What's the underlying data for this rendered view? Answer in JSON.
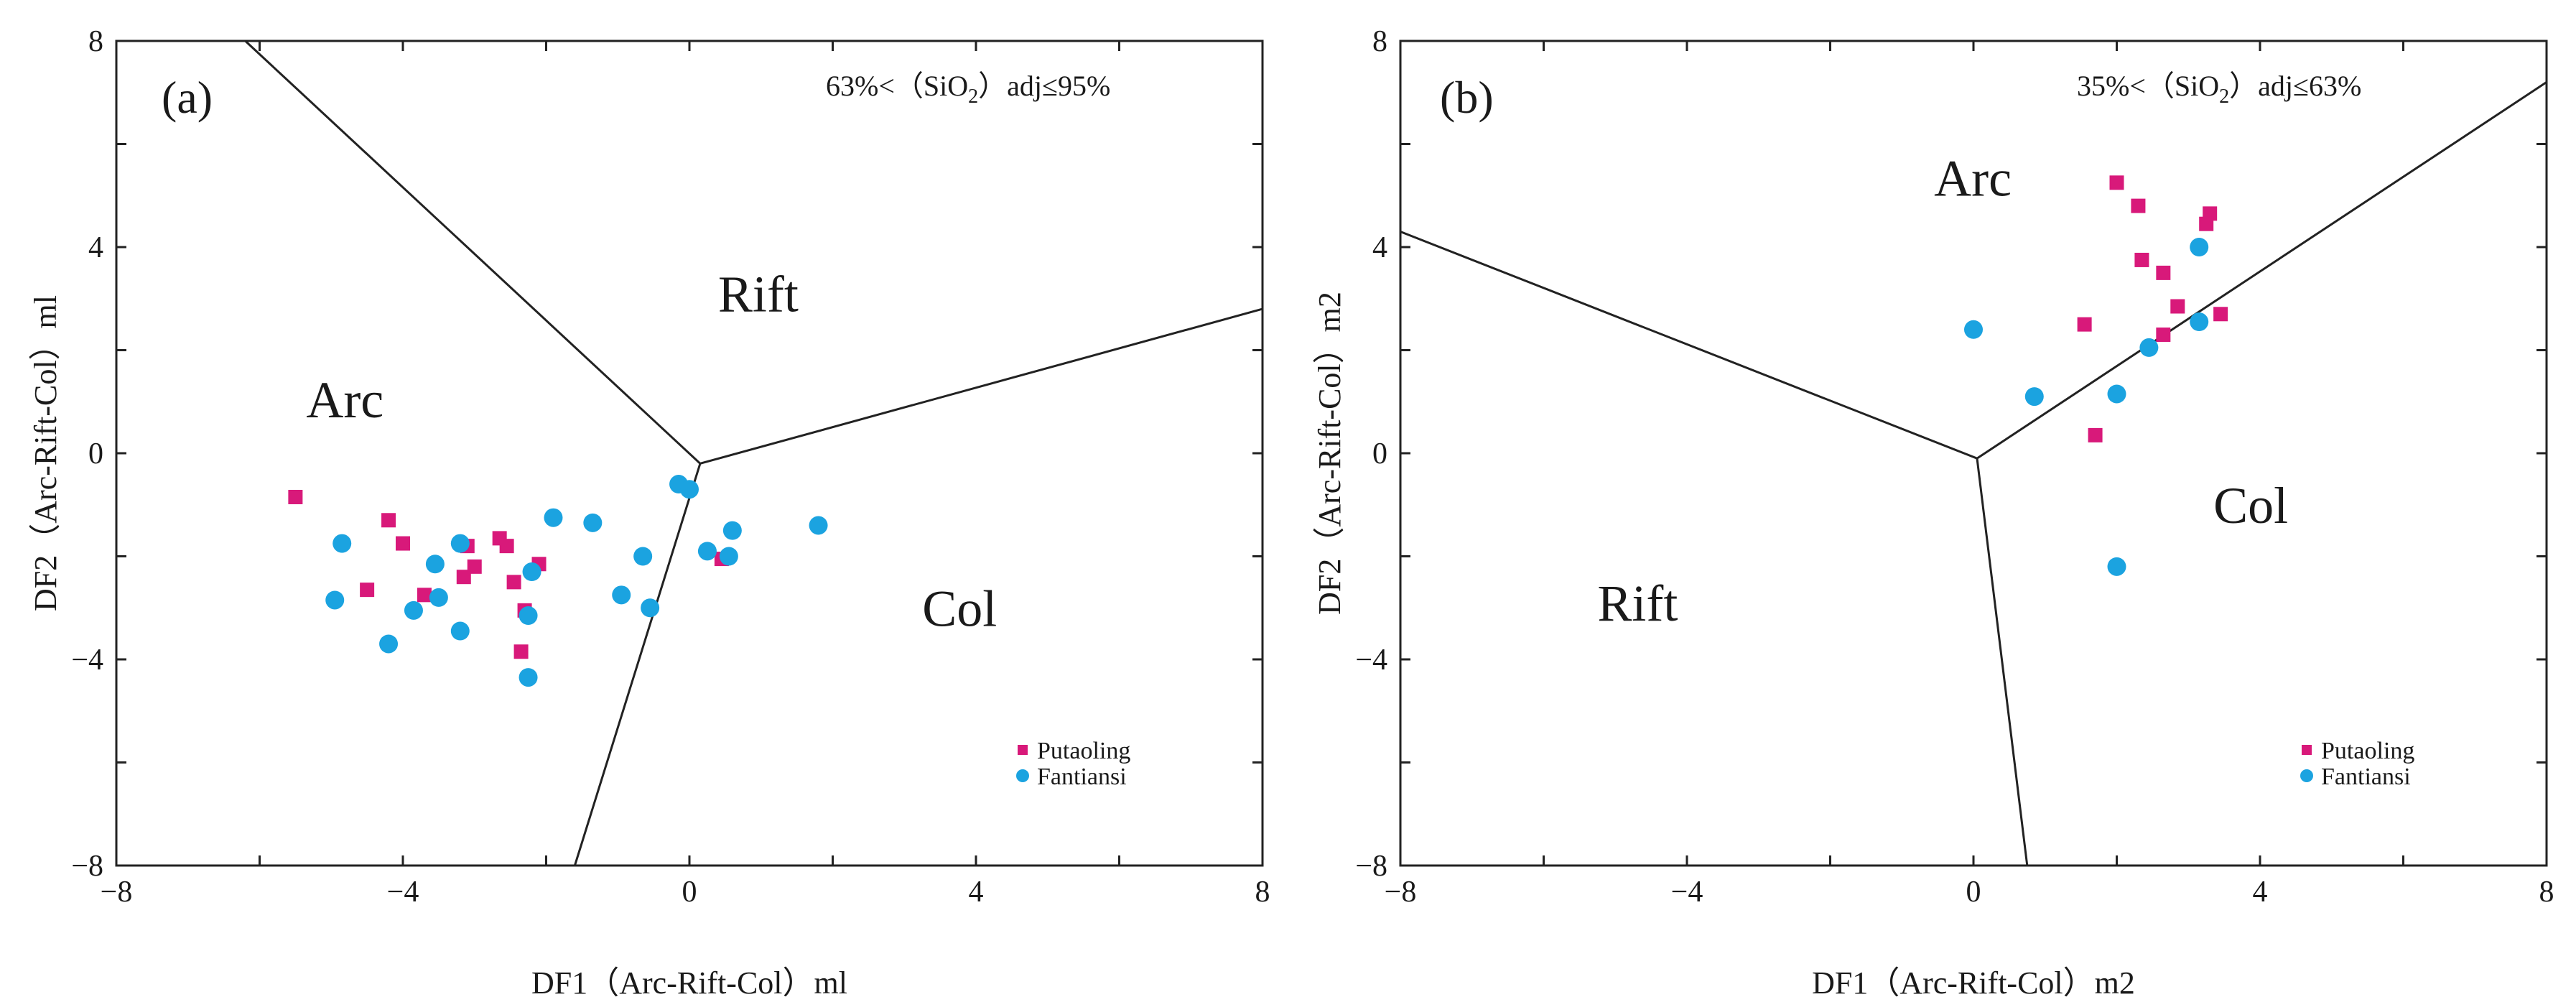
{
  "colors": {
    "putaoling": "#d8197a",
    "fantiansi": "#1ba3e0"
  },
  "chart_data": [
    {
      "type": "scatter",
      "panel_label": "(a)",
      "condition_prefix": "63%<（SiO",
      "condition_sub": "2",
      "condition_suffix": "）adj≤95%",
      "xlabel": "DF1（Arc-Rift-Col）ml",
      "ylabel": "DF2（Arc-Rift-Col）ml",
      "xlim": [
        -8,
        8
      ],
      "ylim": [
        -8,
        8
      ],
      "xticks": [
        -8,
        -4,
        0,
        4,
        8
      ],
      "yticks": [
        -8,
        -4,
        0,
        4,
        8
      ],
      "xtick_labels": [
        "−8",
        "−4",
        "0",
        "4",
        "8"
      ],
      "ytick_labels": [
        "−8",
        "−4",
        "0",
        "4",
        "8"
      ],
      "boundaries": [
        [
          [
            -6.2,
            8.0
          ],
          [
            0.15,
            -0.2
          ]
        ],
        [
          [
            0.15,
            -0.2
          ],
          [
            8.0,
            2.8
          ]
        ],
        [
          [
            0.15,
            -0.2
          ],
          [
            -1.6,
            -8.0
          ]
        ]
      ],
      "regions": [
        {
          "label": "Arc",
          "x": -5.35,
          "y": 0.7
        },
        {
          "label": "Rift",
          "x": 0.4,
          "y": 2.75
        },
        {
          "label": "Col",
          "x": 3.25,
          "y": -3.35
        }
      ],
      "legend": [
        "Putaoling",
        "Fantiansi"
      ],
      "series": [
        {
          "name": "Putaoling",
          "marker": "square",
          "points": [
            [
              -5.5,
              -0.85
            ],
            [
              -4.2,
              -1.3
            ],
            [
              -4.0,
              -1.75
            ],
            [
              -4.5,
              -2.65
            ],
            [
              -3.7,
              -2.75
            ],
            [
              -3.1,
              -1.8
            ],
            [
              -3.0,
              -2.2
            ],
            [
              -3.15,
              -2.4
            ],
            [
              -2.65,
              -1.65
            ],
            [
              -2.55,
              -1.8
            ],
            [
              -2.45,
              -2.5
            ],
            [
              -2.3,
              -3.05
            ],
            [
              -2.35,
              -3.85
            ],
            [
              -2.1,
              -2.15
            ],
            [
              0.45,
              -2.05
            ]
          ]
        },
        {
          "name": "Fantiansi",
          "marker": "circle",
          "points": [
            [
              -4.85,
              -1.75
            ],
            [
              -4.95,
              -2.85
            ],
            [
              -4.2,
              -3.7
            ],
            [
              -3.85,
              -3.05
            ],
            [
              -3.55,
              -2.15
            ],
            [
              -3.5,
              -2.8
            ],
            [
              -3.2,
              -1.75
            ],
            [
              -3.2,
              -3.45
            ],
            [
              -2.2,
              -2.3
            ],
            [
              -2.25,
              -3.15
            ],
            [
              -2.25,
              -4.35
            ],
            [
              -1.9,
              -1.25
            ],
            [
              -1.35,
              -1.35
            ],
            [
              -0.95,
              -2.75
            ],
            [
              -0.65,
              -2.0
            ],
            [
              -0.55,
              -3.0
            ],
            [
              -0.15,
              -0.6
            ],
            [
              0.0,
              -0.7
            ],
            [
              0.25,
              -1.9
            ],
            [
              0.55,
              -2.0
            ],
            [
              0.6,
              -1.5
            ],
            [
              1.8,
              -1.4
            ]
          ]
        }
      ]
    },
    {
      "type": "scatter",
      "panel_label": "(b)",
      "condition_prefix": "35%<（SiO",
      "condition_sub": "2",
      "condition_suffix": "）adj≤63%",
      "xlabel": "DF1（Arc-Rift-Col）m2",
      "ylabel": "DF2（Arc-Rift-Col）m2",
      "xlim": [
        -8,
        8
      ],
      "ylim": [
        -8,
        8
      ],
      "xticks": [
        -8,
        -4,
        0,
        4,
        8
      ],
      "yticks": [
        -8,
        -4,
        0,
        4,
        8
      ],
      "xtick_labels": [
        "−8",
        "−4",
        "0",
        "4",
        "8"
      ],
      "ytick_labels": [
        "−8",
        "−4",
        "0",
        "4",
        "8"
      ],
      "boundaries": [
        [
          [
            -8.0,
            4.3
          ],
          [
            0.05,
            -0.1
          ]
        ],
        [
          [
            0.05,
            -0.1
          ],
          [
            8.0,
            7.2
          ]
        ],
        [
          [
            0.05,
            -0.1
          ],
          [
            0.75,
            -8.0
          ]
        ]
      ],
      "regions": [
        {
          "label": "Arc",
          "x": -0.55,
          "y": 5.0
        },
        {
          "label": "Rift",
          "x": -5.25,
          "y": -3.25
        },
        {
          "label": "Col",
          "x": 3.35,
          "y": -1.35
        }
      ],
      "legend": [
        "Putaoling",
        "Fantiansi"
      ],
      "series": [
        {
          "name": "Putaoling",
          "marker": "square",
          "points": [
            [
              2.0,
              5.25
            ],
            [
              2.3,
              4.8
            ],
            [
              3.3,
              4.65
            ],
            [
              3.25,
              4.45
            ],
            [
              2.35,
              3.75
            ],
            [
              2.65,
              3.5
            ],
            [
              2.85,
              2.85
            ],
            [
              3.45,
              2.7
            ],
            [
              1.55,
              2.5
            ],
            [
              2.65,
              2.3
            ],
            [
              1.7,
              0.35
            ]
          ]
        },
        {
          "name": "Fantiansi",
          "marker": "circle",
          "points": [
            [
              3.15,
              4.0
            ],
            [
              0.0,
              2.4
            ],
            [
              3.15,
              2.55
            ],
            [
              2.45,
              2.05
            ],
            [
              0.85,
              1.1
            ],
            [
              2.0,
              1.15
            ],
            [
              2.0,
              -2.2
            ]
          ]
        }
      ]
    }
  ]
}
